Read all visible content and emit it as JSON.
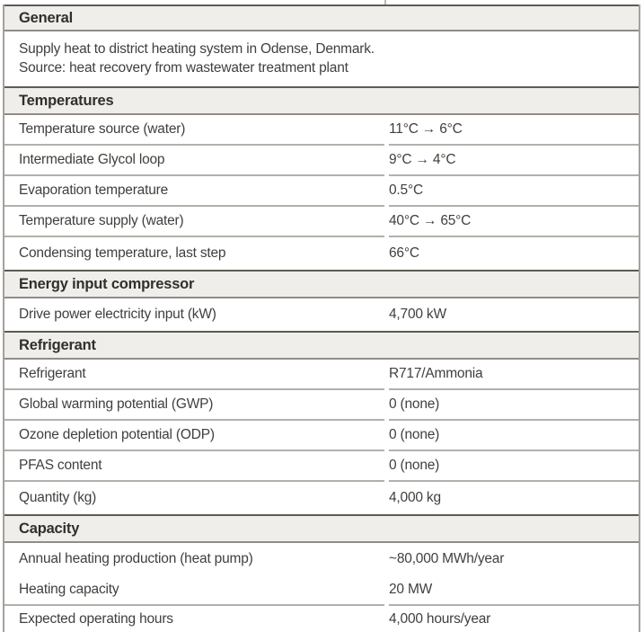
{
  "colors": {
    "section_header_bg": "#efeeeb",
    "section_header_top_border": "#5e5a55",
    "row_divider": "#b3b0ab",
    "side_border": "#a5a19c",
    "text": "#413f3d"
  },
  "table": {
    "sections": [
      {
        "title": "General",
        "desc1": "Supply heat to district heating system in Odense, Denmark.",
        "desc2": "Source: heat recovery from wastewater treatment plant"
      },
      {
        "title": "Temperatures",
        "rows": [
          {
            "label": "Temperature source (water)",
            "value": "11°C → 6°C"
          },
          {
            "label": "Intermediate Glycol loop",
            "value": "9°C → 4°C"
          },
          {
            "label": "Evaporation temperature",
            "value": "0.5°C"
          },
          {
            "label": "Temperature supply (water)",
            "value": "40°C → 65°C"
          },
          {
            "label": "Condensing temperature, last step",
            "value": "66°C"
          }
        ]
      },
      {
        "title": "Energy input compressor",
        "rows": [
          {
            "label": "Drive power electricity input (kW)",
            "value": "4,700 kW"
          }
        ]
      },
      {
        "title": "Refrigerant",
        "rows": [
          {
            "label": "Refrigerant",
            "value": "R717/Ammonia"
          },
          {
            "label": "Global warming potential (GWP)",
            "value": "0 (none)"
          },
          {
            "label": "Ozone depletion potential (ODP)",
            "value": "0 (none)"
          },
          {
            "label": "PFAS content",
            "value": "0 (none)"
          },
          {
            "label": "Quantity (kg)",
            "value": "4,000 kg"
          }
        ]
      },
      {
        "title": "Capacity",
        "rows": [
          {
            "label": "Annual heating production (heat pump)",
            "value": "~80,000 MWh/year"
          },
          {
            "label": "Heating capacity",
            "value": "20 MW"
          },
          {
            "label": "Expected operating hours",
            "value": "4,000 hours/year"
          }
        ]
      }
    ]
  }
}
